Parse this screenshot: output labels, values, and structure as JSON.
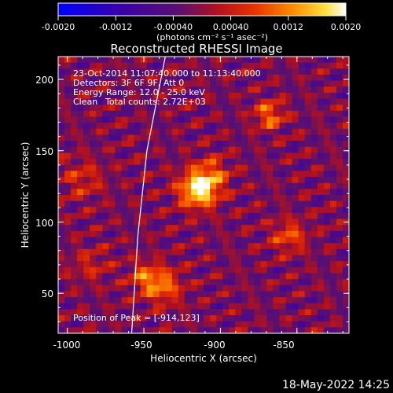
{
  "colorbar": {
    "tick_labels": [
      "-0.0020",
      "-0.0012",
      "-0.00040",
      "0.00040",
      "0.0012",
      "0.0020"
    ],
    "unit_label": "(photons cm⁻² s⁻¹ asec⁻²)",
    "range": [
      -0.002,
      0.002
    ]
  },
  "info": {
    "time": "23-Oct-2014 11:07:40.000 to 11:13:40.000",
    "detectors": "Detectors: 3F 6F 9F, Att 0",
    "energy": "Energy Range: 12.0 - 25.0 keV",
    "method": "Clean",
    "counts": "Total counts: 2.72E+03",
    "peak": "Position of Peak = [-914,123]"
  },
  "footer": {
    "date": "18-May-2022 14:25"
  },
  "chart_data": {
    "type": "heatmap",
    "title": "Reconstructed RHESSI Image",
    "xlabel": "Heliocentric X (arcsec)",
    "ylabel": "Heliocentric Y (arcsec)",
    "xlim": [
      -1006,
      -816
    ],
    "ylim": [
      22,
      216
    ],
    "x_ticks": [
      -1000,
      -950,
      -900,
      -850
    ],
    "y_ticks": [
      50,
      100,
      150,
      200
    ],
    "x_tick_labels": [
      "-1000",
      "-950",
      "-900",
      "-850"
    ],
    "y_tick_labels": [
      "50",
      "100",
      "150",
      "200"
    ],
    "peak": [
      -914,
      123
    ],
    "limb_points": [
      [
        -958,
        22
      ],
      [
        -954,
        90
      ],
      [
        -948,
        150
      ],
      [
        -936,
        216
      ]
    ],
    "sources": [
      {
        "x": -914,
        "y": 123,
        "amplitude": 1.0,
        "sigma": 9
      },
      {
        "x": -905,
        "y": 135,
        "amplitude": 0.35,
        "sigma": 8
      },
      {
        "x": -938,
        "y": 55,
        "amplitude": 0.55,
        "sigma": 9
      },
      {
        "x": -950,
        "y": 62,
        "amplitude": 0.4,
        "sigma": 7
      },
      {
        "x": -868,
        "y": 175,
        "amplitude": 0.55,
        "sigma": 7
      },
      {
        "x": -855,
        "y": 90,
        "amplitude": 0.45,
        "sigma": 8
      },
      {
        "x": -990,
        "y": 130,
        "amplitude": 0.3,
        "sigma": 10
      },
      {
        "x": -985,
        "y": 70,
        "amplitude": 0.25,
        "sigma": 9
      }
    ]
  }
}
